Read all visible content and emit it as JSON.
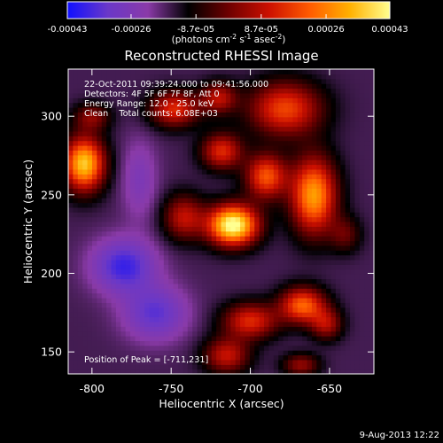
{
  "chart_data": {
    "type": "heatmap",
    "title": "Reconstructed RHESSI Image",
    "xlabel": "Heliocentric X (arcsec)",
    "ylabel": "Heliocentric Y (arcsec)",
    "xlim": [
      -815,
      -622
    ],
    "ylim": [
      136,
      330
    ],
    "x_ticks": [
      -800,
      -750,
      -700,
      -650
    ],
    "x_tick_labels": [
      "-800",
      "-750",
      "-700",
      "-650"
    ],
    "y_ticks": [
      150,
      200,
      250,
      300
    ],
    "y_tick_labels": [
      "150",
      "200",
      "250",
      "300"
    ],
    "colorbar": {
      "range": [
        -0.00043,
        0.00043
      ],
      "tick_values": [
        -0.00043,
        -0.00026,
        -8.7e-05,
        8.7e-05,
        0.00026,
        0.00043
      ],
      "tick_labels": [
        "-0.00043",
        "-0.00026",
        "-8.7e-05",
        "8.7e-05",
        "0.00026",
        "0.00043"
      ],
      "units_label": "(photons cm",
      "units_label_exp1": "-2",
      "units_label_mid": " s",
      "units_label_exp2": "-1",
      "units_label_end": " asec",
      "units_label_exp3": "-2",
      "units_label_close": ")",
      "colormap": [
        "#1010ff",
        "#6a38c8",
        "#8a3aa8",
        "#000000",
        "#6e0000",
        "#cc1000",
        "#ff5a00",
        "#ffb000",
        "#ffff90"
      ]
    },
    "annotations": [
      "22-Oct-2011 09:39:24.000 to 09:41:56.000",
      "Detectors: 4F 5F 6F 7F 8F, Att 0",
      "Energy Range: 12.0 - 25.0 keV",
      "Clean    Total counts: 6.08E+03"
    ],
    "peak_label": "Position of Peak = [-711,231]",
    "peak": {
      "x": -711,
      "y": 231
    },
    "base_level": -0.00016,
    "blobs": [
      {
        "x": -711,
        "y": 231,
        "amp": 0.00062,
        "sx": 11,
        "sy": 9
      },
      {
        "x": -742,
        "y": 236,
        "amp": 0.00025,
        "sx": 9,
        "sy": 10
      },
      {
        "x": -660,
        "y": 250,
        "amp": 0.00046,
        "sx": 10,
        "sy": 17
      },
      {
        "x": -690,
        "y": 262,
        "amp": 0.00036,
        "sx": 9,
        "sy": 10
      },
      {
        "x": -718,
        "y": 278,
        "amp": 0.0003,
        "sx": 9,
        "sy": 8
      },
      {
        "x": -678,
        "y": 305,
        "amp": 0.00034,
        "sx": 16,
        "sy": 12
      },
      {
        "x": -748,
        "y": 305,
        "amp": 0.0003,
        "sx": 11,
        "sy": 8
      },
      {
        "x": -720,
        "y": 312,
        "amp": 0.00024,
        "sx": 8,
        "sy": 7
      },
      {
        "x": -805,
        "y": 270,
        "amp": 0.00052,
        "sx": 9,
        "sy": 12
      },
      {
        "x": -800,
        "y": 300,
        "amp": 0.00018,
        "sx": 8,
        "sy": 6
      },
      {
        "x": -667,
        "y": 180,
        "amp": 0.00038,
        "sx": 10,
        "sy": 8
      },
      {
        "x": -700,
        "y": 170,
        "amp": 0.0003,
        "sx": 12,
        "sy": 8
      },
      {
        "x": -715,
        "y": 148,
        "amp": 0.00026,
        "sx": 10,
        "sy": 8
      },
      {
        "x": -652,
        "y": 168,
        "amp": 0.00022,
        "sx": 7,
        "sy": 7
      },
      {
        "x": -668,
        "y": 142,
        "amp": 0.0002,
        "sx": 8,
        "sy": 5
      },
      {
        "x": -640,
        "y": 225,
        "amp": 0.00014,
        "sx": 7,
        "sy": 8
      },
      {
        "x": -780,
        "y": 205,
        "amp": -0.00022,
        "sx": 14,
        "sy": 12
      },
      {
        "x": -760,
        "y": 175,
        "amp": -0.00018,
        "sx": 14,
        "sy": 12
      },
      {
        "x": -770,
        "y": 260,
        "amp": -0.0001,
        "sx": 8,
        "sy": 18
      }
    ]
  },
  "footer": {
    "timestamp": "9-Aug-2013 12:22"
  }
}
